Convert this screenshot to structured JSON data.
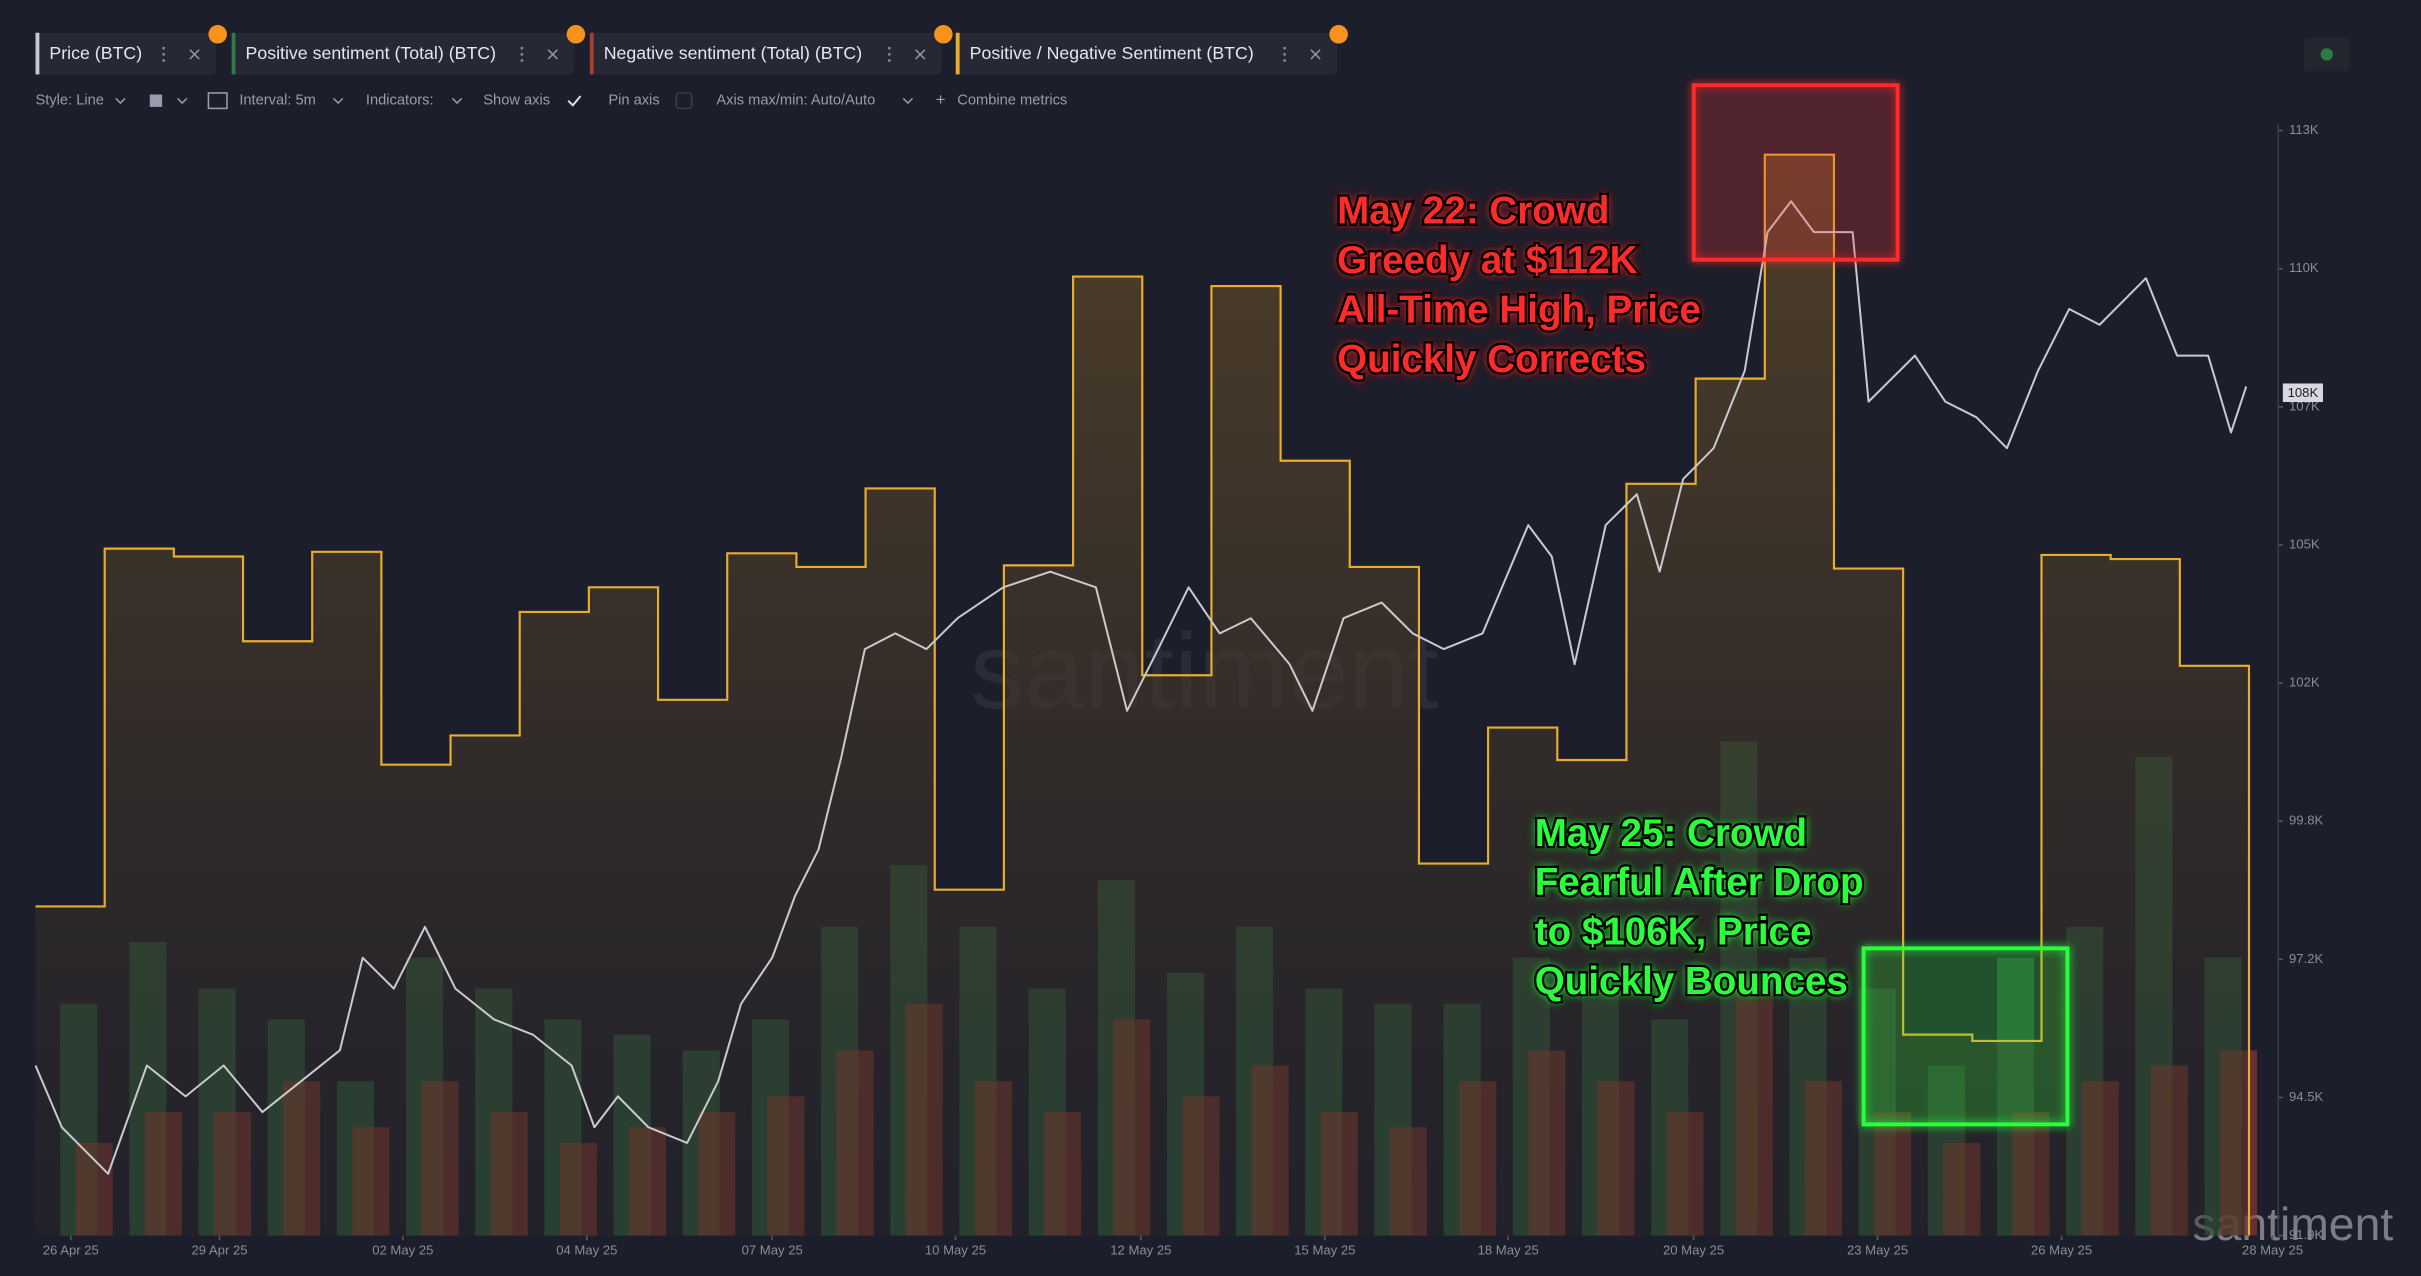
{
  "toolbar": [
    "Style: Line",
    "Interval: 5m",
    "Indicators:",
    "Show axis",
    "Pin axis",
    "Axis max/min: Auto/Auto",
    "Combine metrics"
  ],
  "watermark": "santiment",
  "chart_data": {
    "type": "line",
    "xlim": [
      0,
      32.4
    ],
    "ylim": [
      91900,
      113150
    ],
    "xticks": [
      {
        "value": 0.51,
        "label": "26 Apr 25"
      },
      {
        "value": 2.66,
        "label": "29 Apr 25"
      },
      {
        "value": 5.31,
        "label": "02 May 25"
      },
      {
        "value": 7.97,
        "label": "04 May 25"
      },
      {
        "value": 10.65,
        "label": "07 May 25"
      },
      {
        "value": 13.3,
        "label": "10 May 25"
      },
      {
        "value": 15.98,
        "label": "12 May 25"
      },
      {
        "value": 18.64,
        "label": "15 May 25"
      },
      {
        "value": 21.29,
        "label": "18 May 25"
      },
      {
        "value": 23.97,
        "label": "20 May 25"
      },
      {
        "value": 26.63,
        "label": "23 May 25"
      },
      {
        "value": 29.29,
        "label": "26 May 25"
      },
      {
        "value": 32.34,
        "label": "28 May 25"
      }
    ],
    "yticks": [
      {
        "value": 91900,
        "label": "91.9K"
      },
      {
        "value": 94540,
        "label": "94.5K"
      },
      {
        "value": 97180,
        "label": "97.2K"
      },
      {
        "value": 99820,
        "label": "99.8K"
      },
      {
        "value": 102460,
        "label": "102K"
      },
      {
        "value": 105100,
        "label": "105K"
      },
      {
        "value": 107740,
        "label": "107K"
      },
      {
        "value": 110380,
        "label": "110K"
      },
      {
        "value": 113020,
        "label": "113K"
      }
    ],
    "price_marker": {
      "value": 108010,
      "label": "108K"
    },
    "series": [
      {
        "name": "Price (BTC)",
        "type": "line",
        "color": "#c9c9cf",
        "x": [
          0,
          0.38,
          1.05,
          1.61,
          2.17,
          2.72,
          3.28,
          3.84,
          4.4,
          4.73,
          5.18,
          5.63,
          6.07,
          6.63,
          7.19,
          7.75,
          8.08,
          8.42,
          8.86,
          9.42,
          9.87,
          10.2,
          10.65,
          10.98,
          11.32,
          11.65,
          11.99,
          12.43,
          12.88,
          13.33,
          13.99,
          14.67,
          15.33,
          15.78,
          16.23,
          16.67,
          17.12,
          17.57,
          18.13,
          18.46,
          18.91,
          19.46,
          19.91,
          20.36,
          20.92,
          21.58,
          21.92,
          22.25,
          22.7,
          23.15,
          23.48,
          23.82,
          24.26,
          24.71,
          25.04,
          25.38,
          25.71,
          26.27,
          26.5,
          27.17,
          27.61,
          28.06,
          28.5,
          28.95,
          29.4,
          29.84,
          30.51,
          30.96,
          31.41,
          31.74,
          31.96
        ],
        "values": [
          95150,
          93970,
          93080,
          95150,
          94560,
          95150,
          94260,
          94850,
          95440,
          97210,
          96620,
          97800,
          96620,
          96030,
          95740,
          95150,
          93970,
          94560,
          93970,
          93670,
          94850,
          96330,
          97210,
          98390,
          99280,
          101050,
          103110,
          103410,
          103110,
          103700,
          104290,
          104590,
          104290,
          101930,
          103110,
          104290,
          103410,
          103700,
          102820,
          101930,
          103700,
          104000,
          103410,
          103110,
          103410,
          105480,
          104880,
          102820,
          105480,
          106070,
          104590,
          106360,
          106950,
          108430,
          111080,
          111670,
          111080,
          111080,
          107840,
          108720,
          107840,
          107540,
          106950,
          108430,
          109610,
          109310,
          110200,
          108720,
          108720,
          107250,
          108130
        ]
      },
      {
        "name": "Positive sentiment (Total) (BTC)",
        "type": "bar",
        "color": "#2f7a45",
        "x": [
          0,
          1,
          2,
          3,
          4,
          5,
          6,
          7,
          8,
          9,
          10,
          11,
          12,
          13,
          14,
          15,
          16,
          17,
          18,
          19,
          20,
          21,
          22,
          23,
          24,
          25,
          26,
          27,
          28,
          29,
          30,
          31
        ],
        "values": [
          96330,
          97510,
          96620,
          96030,
          94850,
          97210,
          96620,
          96030,
          95740,
          95440,
          96030,
          97800,
          98980,
          97800,
          96620,
          98690,
          96920,
          97800,
          96620,
          96330,
          96330,
          97210,
          96920,
          96030,
          101340,
          97210,
          96620,
          95150,
          97210,
          97800,
          101050,
          97210
        ]
      },
      {
        "name": "Negative sentiment (Total) (BTC)",
        "type": "bar",
        "color": "#a3402f",
        "x": [
          0,
          1,
          2,
          3,
          4,
          5,
          6,
          7,
          8,
          9,
          10,
          11,
          12,
          13,
          14,
          15,
          16,
          17,
          18,
          19,
          20,
          21,
          22,
          23,
          24,
          25,
          26,
          27,
          28,
          29,
          30,
          31
        ],
        "values": [
          93670,
          94260,
          94260,
          94850,
          93970,
          94850,
          94260,
          93670,
          93970,
          94260,
          94560,
          95440,
          96330,
          94850,
          94260,
          96030,
          94560,
          95150,
          94260,
          93970,
          94850,
          95440,
          94850,
          94260,
          96620,
          94850,
          94260,
          93670,
          94260,
          94850,
          95150,
          95440
        ]
      },
      {
        "name": "Positive / Negative Sentiment (BTC)",
        "type": "step",
        "color": "#e9ad2c",
        "x": [
          0,
          1,
          2,
          3,
          4,
          5,
          6,
          7,
          8,
          9,
          10,
          11,
          12,
          13,
          14,
          15,
          16,
          17,
          18,
          19,
          20,
          21,
          22,
          23,
          24,
          25,
          26,
          27,
          28,
          29,
          30,
          31
        ],
        "values": [
          98190,
          105030,
          104880,
          103260,
          104970,
          100900,
          101460,
          103820,
          104290,
          102140,
          104940,
          104680,
          106180,
          98510,
          104710,
          110230,
          102610,
          110050,
          106710,
          104680,
          99010,
          101610,
          100990,
          106270,
          108280,
          112560,
          104650,
          95740,
          95620,
          104910,
          104830,
          102790
        ]
      }
    ],
    "annotations": [
      {
        "color": "#ff2a2a",
        "lines": [
          "May 22: Crowd",
          "Greedy at $112K",
          "All-Time High, Price",
          "Quickly Corrects"
        ]
      },
      {
        "color": "#2cff3a",
        "lines": [
          "May 25: Crowd",
          "Fearful After Drop",
          "to $106K, Price",
          "Quickly Bounces"
        ]
      }
    ]
  }
}
